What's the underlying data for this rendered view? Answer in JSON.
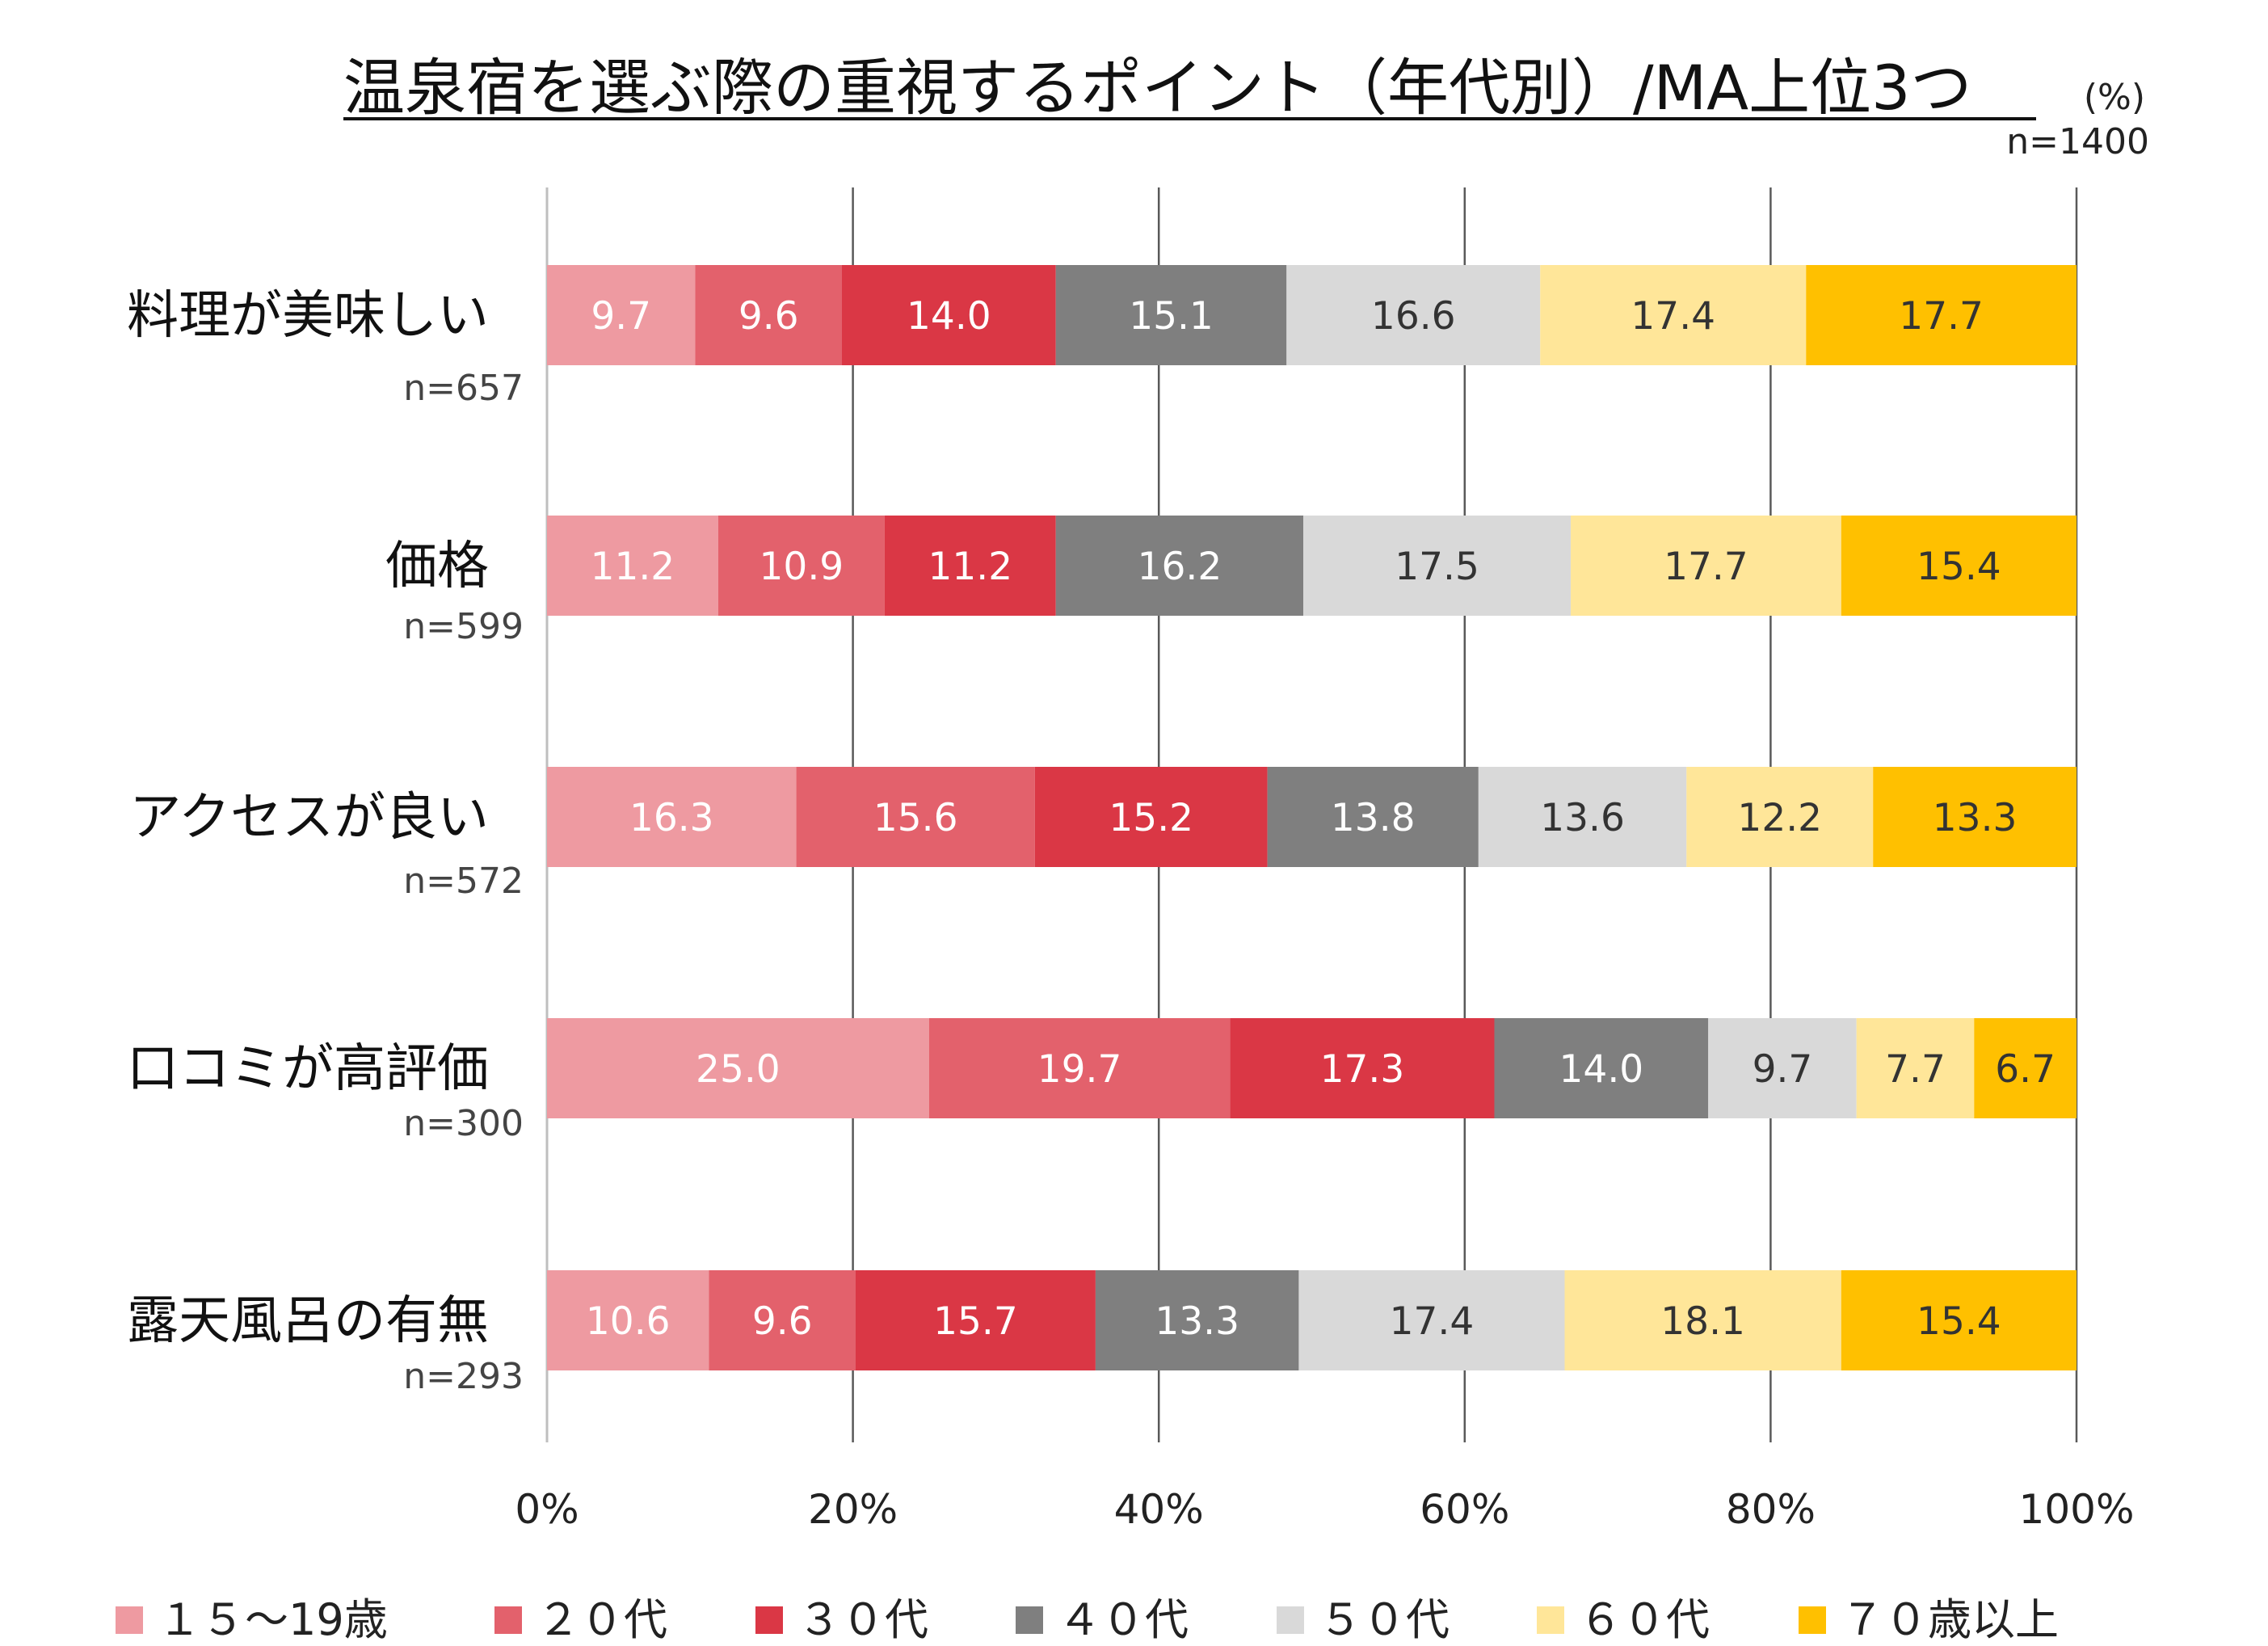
{
  "chart_data": {
    "type": "bar",
    "orientation": "horizontal",
    "stacked": "percent",
    "title": "温泉宿を選ぶ際の重視するポイント（年代別）/MA上位3つ",
    "unit": "(%)",
    "total_n": "n=1400",
    "categories": [
      "料理が美味しい",
      "価格",
      "アクセスが良い",
      "口コミが高評価",
      "露天風呂の有無"
    ],
    "category_n": [
      "n=657",
      "n=599",
      "n=572",
      "n=300",
      "n=293"
    ],
    "x_ticks": [
      "0%",
      "20%",
      "40%",
      "60%",
      "80%",
      "100%"
    ],
    "xlim": [
      0,
      100
    ],
    "grid": true,
    "legend_position": "bottom",
    "series": [
      {
        "name": "１５～19歳",
        "color": "#EE9AA1",
        "label_color": "#ffffff",
        "values": [
          9.7,
          11.2,
          16.3,
          25.0,
          10.6
        ],
        "labels": [
          "9.7",
          "11.2",
          "16.3",
          "25.0",
          "10.6"
        ]
      },
      {
        "name": "２０代",
        "color": "#E3616C",
        "label_color": "#ffffff",
        "values": [
          9.6,
          10.9,
          15.6,
          19.7,
          9.6
        ],
        "labels": [
          "9.6",
          "10.9",
          "15.6",
          "19.7",
          "9.6"
        ]
      },
      {
        "name": "３０代",
        "color": "#DA3745",
        "label_color": "#ffffff",
        "values": [
          14.0,
          11.2,
          15.2,
          17.3,
          15.7
        ],
        "labels": [
          "14.0",
          "11.2",
          "15.2",
          "17.3",
          "15.7"
        ]
      },
      {
        "name": "４０代",
        "color": "#7F7F7F",
        "label_color": "#ffffff",
        "values": [
          15.1,
          16.2,
          13.8,
          14.0,
          13.3
        ],
        "labels": [
          "15.1",
          "16.2",
          "13.8",
          "14.0",
          "13.3"
        ]
      },
      {
        "name": "５０代",
        "color": "#D9D9D9",
        "label_color": "#333333",
        "values": [
          16.6,
          17.5,
          13.6,
          9.7,
          17.4
        ],
        "labels": [
          "16.6",
          "17.5",
          "13.6",
          "9.7",
          "17.4"
        ]
      },
      {
        "name": "６０代",
        "color": "#FFE699",
        "label_color": "#333333",
        "values": [
          17.4,
          17.7,
          12.2,
          7.7,
          18.1
        ],
        "labels": [
          "17.4",
          "17.7",
          "12.2",
          "7.7",
          "18.1"
        ]
      },
      {
        "name": "７０歳以上",
        "color": "#FFC000",
        "label_color": "#333333",
        "values": [
          17.7,
          15.4,
          13.3,
          6.7,
          15.4
        ],
        "labels": [
          "17.7",
          "15.4",
          "13.3",
          "6.7",
          "15.4"
        ]
      }
    ]
  }
}
